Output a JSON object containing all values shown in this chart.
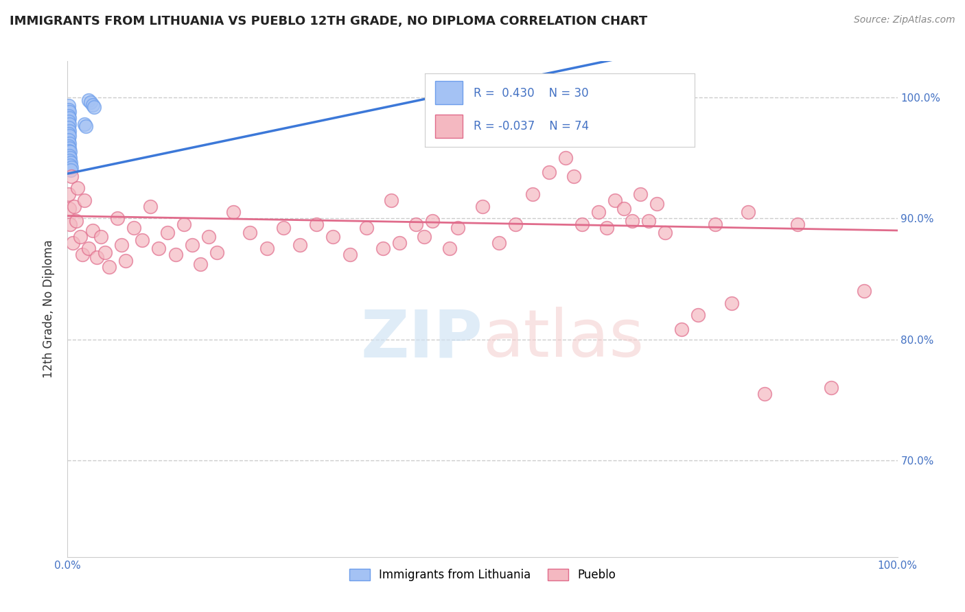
{
  "title": "IMMIGRANTS FROM LITHUANIA VS PUEBLO 12TH GRADE, NO DIPLOMA CORRELATION CHART",
  "source": "Source: ZipAtlas.com",
  "ylabel": "12th Grade, No Diploma",
  "legend_label1": "Immigrants from Lithuania",
  "legend_label2": "Pueblo",
  "R1": 0.43,
  "N1": 30,
  "R2": -0.037,
  "N2": 74,
  "blue_color": "#a4c2f4",
  "pink_color": "#f4b8c1",
  "blue_edge_color": "#6d9eeb",
  "pink_edge_color": "#e06b8b",
  "blue_line_color": "#3c78d8",
  "pink_line_color": "#e06b8b",
  "blue_scatter": [
    [
      0.001,
      0.993
    ],
    [
      0.001,
      0.99
    ],
    [
      0.002,
      0.988
    ],
    [
      0.001,
      0.985
    ],
    [
      0.002,
      0.983
    ],
    [
      0.001,
      0.98
    ],
    [
      0.002,
      0.978
    ],
    [
      0.001,
      0.975
    ],
    [
      0.002,
      0.972
    ],
    [
      0.001,
      0.97
    ],
    [
      0.002,
      0.968
    ],
    [
      0.001,
      0.965
    ],
    [
      0.002,
      0.962
    ],
    [
      0.001,
      0.96
    ],
    [
      0.002,
      0.958
    ],
    [
      0.001,
      0.956
    ],
    [
      0.003,
      0.955
    ],
    [
      0.002,
      0.952
    ],
    [
      0.003,
      0.95
    ],
    [
      0.002,
      0.948
    ],
    [
      0.004,
      0.946
    ],
    [
      0.003,
      0.944
    ],
    [
      0.005,
      0.942
    ],
    [
      0.004,
      0.94
    ],
    [
      0.02,
      0.978
    ],
    [
      0.022,
      0.976
    ],
    [
      0.025,
      0.998
    ],
    [
      0.028,
      0.996
    ],
    [
      0.03,
      0.994
    ],
    [
      0.032,
      0.992
    ]
  ],
  "pink_scatter": [
    [
      0.001,
      0.92
    ],
    [
      0.002,
      0.908
    ],
    [
      0.003,
      0.895
    ],
    [
      0.005,
      0.935
    ],
    [
      0.006,
      0.88
    ],
    [
      0.008,
      0.91
    ],
    [
      0.01,
      0.898
    ],
    [
      0.012,
      0.925
    ],
    [
      0.015,
      0.885
    ],
    [
      0.018,
      0.87
    ],
    [
      0.02,
      0.915
    ],
    [
      0.025,
      0.875
    ],
    [
      0.03,
      0.89
    ],
    [
      0.035,
      0.868
    ],
    [
      0.04,
      0.885
    ],
    [
      0.045,
      0.872
    ],
    [
      0.05,
      0.86
    ],
    [
      0.06,
      0.9
    ],
    [
      0.065,
      0.878
    ],
    [
      0.07,
      0.865
    ],
    [
      0.08,
      0.892
    ],
    [
      0.09,
      0.882
    ],
    [
      0.1,
      0.91
    ],
    [
      0.11,
      0.875
    ],
    [
      0.12,
      0.888
    ],
    [
      0.13,
      0.87
    ],
    [
      0.14,
      0.895
    ],
    [
      0.15,
      0.878
    ],
    [
      0.16,
      0.862
    ],
    [
      0.17,
      0.885
    ],
    [
      0.18,
      0.872
    ],
    [
      0.2,
      0.905
    ],
    [
      0.22,
      0.888
    ],
    [
      0.24,
      0.875
    ],
    [
      0.26,
      0.892
    ],
    [
      0.28,
      0.878
    ],
    [
      0.3,
      0.895
    ],
    [
      0.32,
      0.885
    ],
    [
      0.34,
      0.87
    ],
    [
      0.36,
      0.892
    ],
    [
      0.38,
      0.875
    ],
    [
      0.39,
      0.915
    ],
    [
      0.4,
      0.88
    ],
    [
      0.42,
      0.895
    ],
    [
      0.43,
      0.885
    ],
    [
      0.44,
      0.898
    ],
    [
      0.46,
      0.875
    ],
    [
      0.47,
      0.892
    ],
    [
      0.5,
      0.91
    ],
    [
      0.52,
      0.88
    ],
    [
      0.54,
      0.895
    ],
    [
      0.56,
      0.92
    ],
    [
      0.58,
      0.938
    ],
    [
      0.6,
      0.95
    ],
    [
      0.61,
      0.935
    ],
    [
      0.62,
      0.895
    ],
    [
      0.64,
      0.905
    ],
    [
      0.65,
      0.892
    ],
    [
      0.66,
      0.915
    ],
    [
      0.67,
      0.908
    ],
    [
      0.68,
      0.898
    ],
    [
      0.69,
      0.92
    ],
    [
      0.7,
      0.898
    ],
    [
      0.71,
      0.912
    ],
    [
      0.72,
      0.888
    ],
    [
      0.74,
      0.808
    ],
    [
      0.76,
      0.82
    ],
    [
      0.78,
      0.895
    ],
    [
      0.8,
      0.83
    ],
    [
      0.82,
      0.905
    ],
    [
      0.84,
      0.755
    ],
    [
      0.88,
      0.895
    ],
    [
      0.92,
      0.76
    ],
    [
      0.96,
      0.84
    ]
  ],
  "xlim": [
    0.0,
    1.0
  ],
  "ylim": [
    0.62,
    1.03
  ],
  "yticks": [
    0.7,
    0.8,
    0.9,
    1.0
  ],
  "xticks": [
    0.0,
    0.25,
    0.5,
    0.75,
    1.0
  ],
  "xticklabels": [
    "0.0%",
    "",
    "",
    "",
    "100.0%"
  ],
  "yticklabels_right": [
    "70.0%",
    "80.0%",
    "90.0%",
    "100.0%"
  ],
  "background_color": "#ffffff",
  "grid_color": "#cccccc",
  "watermark_zip_color": "#dce9f8",
  "watermark_atlas_color": "#f0dde0",
  "tick_label_color": "#4472c4"
}
